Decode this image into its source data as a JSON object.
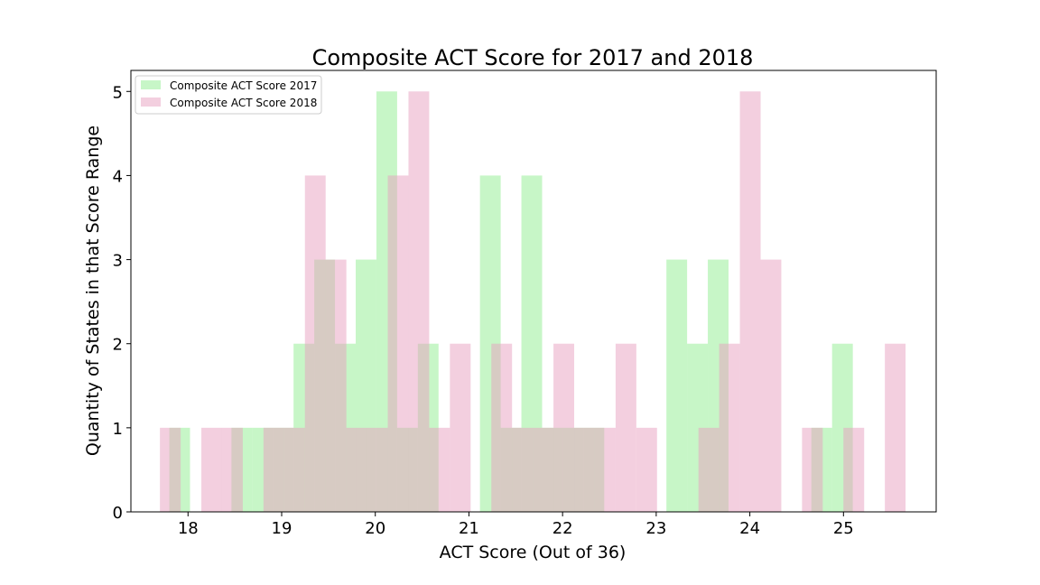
{
  "chart_data": {
    "type": "bar",
    "title": "Composite ACT Score for 2017 and 2018",
    "xlabel": "ACT Score (Out of 36)",
    "ylabel": "Quantity of States in that Score Range",
    "xlim": [
      17.39,
      25.99
    ],
    "ylim": [
      0,
      5.25
    ],
    "xticks": [
      18,
      19,
      20,
      21,
      22,
      23,
      24,
      25
    ],
    "yticks": [
      0,
      1,
      2,
      3,
      4,
      5
    ],
    "grid": false,
    "legend": "top-left",
    "colors": {
      "s2017": "#90ee90",
      "s2018": "#e8a0bf",
      "overlap": "#d9cdbb"
    },
    "series": [
      {
        "name": "Composite ACT Score 2017",
        "bin_start": 17.8,
        "bin_width": 0.2212,
        "values": [
          1,
          0,
          0,
          1,
          1,
          1,
          2,
          3,
          2,
          3,
          5,
          1,
          2,
          0,
          0,
          4,
          1,
          4,
          1,
          1,
          1,
          0,
          0,
          0,
          3,
          2,
          3,
          0,
          0,
          0,
          0,
          1,
          2
        ]
      },
      {
        "name": "Composite ACT Score 2018",
        "bin_start": 17.7,
        "bin_width": 0.2212,
        "values": [
          1,
          0,
          1,
          1,
          0,
          1,
          1,
          4,
          3,
          1,
          1,
          4,
          5,
          1,
          2,
          0,
          2,
          1,
          1,
          2,
          1,
          1,
          2,
          1,
          0,
          0,
          1,
          2,
          5,
          3,
          0,
          1,
          0,
          1,
          0,
          2
        ]
      }
    ]
  }
}
